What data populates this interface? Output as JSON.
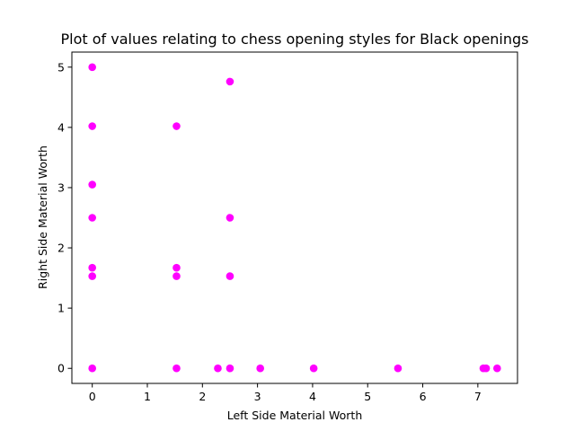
{
  "chart_data": {
    "type": "scatter",
    "title": "Plot of values relating to chess opening styles for Black openings",
    "xlabel": "Left Side Material Worth",
    "ylabel": "Right Side Material Worth",
    "xlim": [
      -0.37,
      7.72
    ],
    "ylim": [
      -0.25,
      5.25
    ],
    "xticks": [
      0,
      1,
      2,
      3,
      4,
      5,
      6,
      7
    ],
    "yticks": [
      0,
      1,
      2,
      3,
      4,
      5
    ],
    "grid": false,
    "marker_color": "#ff00ff",
    "points": [
      {
        "x": 0,
        "y": 5.0
      },
      {
        "x": 0,
        "y": 4.02
      },
      {
        "x": 0,
        "y": 3.05
      },
      {
        "x": 0,
        "y": 2.5
      },
      {
        "x": 0,
        "y": 1.67
      },
      {
        "x": 0,
        "y": 1.53
      },
      {
        "x": 0,
        "y": 0
      },
      {
        "x": 1.53,
        "y": 4.02
      },
      {
        "x": 1.53,
        "y": 1.67
      },
      {
        "x": 1.53,
        "y": 1.53
      },
      {
        "x": 1.53,
        "y": 0
      },
      {
        "x": 2.5,
        "y": 4.76
      },
      {
        "x": 2.5,
        "y": 2.5
      },
      {
        "x": 2.5,
        "y": 1.53
      },
      {
        "x": 2.5,
        "y": 0
      },
      {
        "x": 2.28,
        "y": 0
      },
      {
        "x": 3.05,
        "y": 0
      },
      {
        "x": 4.02,
        "y": 0
      },
      {
        "x": 5.55,
        "y": 0
      },
      {
        "x": 7.1,
        "y": 0
      },
      {
        "x": 7.15,
        "y": 0
      },
      {
        "x": 7.35,
        "y": 0
      }
    ]
  }
}
